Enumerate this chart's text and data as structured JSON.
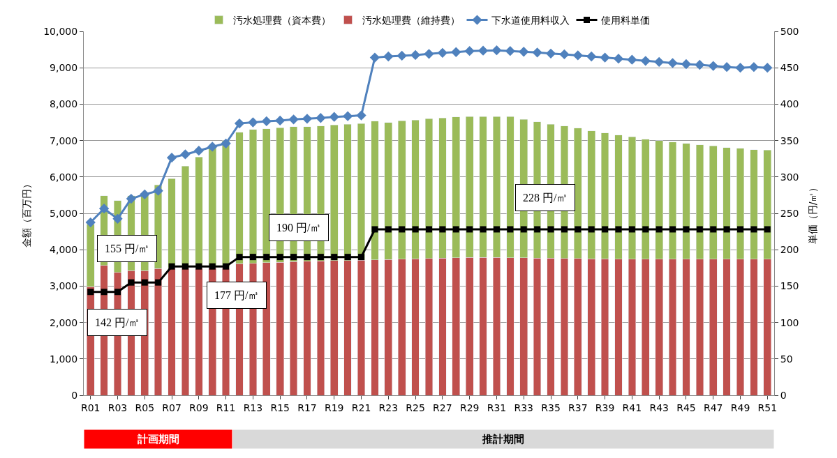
{
  "chart_data": {
    "type": "bar",
    "stacked": true,
    "ylabel": "金額（百万円）",
    "y2label": "単価（円/㎥）",
    "categories": [
      "R01",
      null,
      "R03",
      null,
      "R05",
      null,
      "R07",
      null,
      "R09",
      null,
      "R11",
      null,
      "R13",
      null,
      "R15",
      null,
      "R17",
      null,
      "R19",
      null,
      "R21",
      null,
      "R23",
      null,
      "R25",
      null,
      "R27",
      null,
      "R29",
      null,
      "R31",
      null,
      "R33",
      null,
      "R35",
      null,
      "R37",
      null,
      "R39",
      null,
      "R41",
      null,
      "R43",
      null,
      "R45",
      null,
      "R47",
      null,
      "R49",
      null,
      "R51"
    ],
    "series": [
      {
        "name": "汚水処理費（維持費）",
        "color": "#c0504d",
        "values": [
          2980,
          3570,
          3380,
          3420,
          3420,
          3480,
          3500,
          3500,
          3500,
          3500,
          3500,
          3620,
          3630,
          3640,
          3650,
          3670,
          3680,
          3690,
          3700,
          3700,
          3710,
          3720,
          3730,
          3740,
          3750,
          3760,
          3770,
          3780,
          3790,
          3790,
          3790,
          3780,
          3780,
          3770,
          3770,
          3760,
          3760,
          3750,
          3750,
          3740,
          3740,
          3740,
          3740,
          3740,
          3740,
          3740,
          3740,
          3740,
          3740,
          3740,
          3740
        ]
      },
      {
        "name": "汚水処理費（資本費）",
        "color": "#9bbb59",
        "values": [
          1720,
          1910,
          1970,
          2060,
          2130,
          2300,
          2450,
          2800,
          3050,
          3300,
          3500,
          3610,
          3670,
          3680,
          3700,
          3710,
          3700,
          3710,
          3730,
          3750,
          3760,
          3810,
          3770,
          3800,
          3810,
          3840,
          3850,
          3870,
          3870,
          3870,
          3870,
          3880,
          3800,
          3740,
          3680,
          3640,
          3580,
          3520,
          3460,
          3410,
          3360,
          3300,
          3260,
          3220,
          3180,
          3140,
          3110,
          3070,
          3050,
          3010,
          3000
        ]
      },
      {
        "name": "下水道使用料収入",
        "type": "line",
        "color": "#4f81bd",
        "marker": "diamond",
        "values": [
          4750,
          5130,
          4850,
          5400,
          5520,
          5620,
          6530,
          6620,
          6720,
          6830,
          6920,
          7470,
          7500,
          7530,
          7550,
          7580,
          7600,
          7620,
          7650,
          7670,
          7690,
          9280,
          9310,
          9330,
          9350,
          9380,
          9410,
          9430,
          9460,
          9470,
          9480,
          9460,
          9440,
          9420,
          9390,
          9370,
          9340,
          9310,
          9280,
          9250,
          9220,
          9190,
          9160,
          9130,
          9100,
          9080,
          9050,
          9020,
          9000,
          9020,
          9000
        ]
      },
      {
        "name": "使用料単価",
        "type": "line",
        "axis": "y2",
        "color": "#000000",
        "marker": "square",
        "values": [
          142,
          142,
          142,
          155,
          155,
          155,
          177,
          177,
          177,
          177,
          177,
          190,
          190,
          190,
          190,
          190,
          190,
          190,
          190,
          190,
          190,
          228,
          228,
          228,
          228,
          228,
          228,
          228,
          228,
          228,
          228,
          228,
          228,
          228,
          228,
          228,
          228,
          228,
          228,
          228,
          228,
          228,
          228,
          228,
          228,
          228,
          228,
          228,
          228,
          228,
          228
        ]
      }
    ],
    "ylim": [
      0,
      10000
    ],
    "yticks": [
      0,
      {
        "value": 1000,
        "label": "1,000"
      },
      {
        "value": 2000,
        "label": "2,000"
      },
      {
        "value": 3000,
        "label": "3,000"
      },
      {
        "value": 4000,
        "label": "4,000"
      },
      {
        "value": 5000,
        "label": "5,000"
      },
      {
        "value": 6000,
        "label": "6,000"
      },
      {
        "value": 7000,
        "label": "7,000"
      },
      {
        "value": 8000,
        "label": "8,000"
      },
      {
        "value": 9000,
        "label": "9,000"
      },
      {
        "value": 10000,
        "label": "10,000"
      }
    ],
    "y2lim": [
      0,
      500
    ],
    "y2ticks": [
      0,
      50,
      100,
      150,
      200,
      250,
      300,
      350,
      400,
      450,
      500
    ],
    "grid": "y",
    "legend": "top",
    "annotations": [
      "142 円/㎥",
      "155 円/㎥",
      "177 円/㎥",
      "190 円/㎥",
      "228 円/㎥",
      "計画期間",
      "推計期間"
    ]
  }
}
